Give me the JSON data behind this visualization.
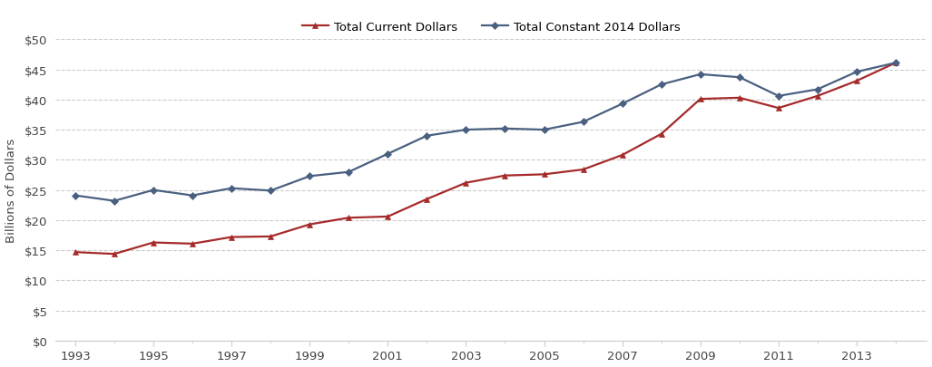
{
  "years": [
    1993,
    1994,
    1995,
    1996,
    1997,
    1998,
    1999,
    2000,
    2001,
    2002,
    2003,
    2004,
    2005,
    2006,
    2007,
    2008,
    2009,
    2010,
    2011,
    2012,
    2013,
    2014
  ],
  "current_dollars": [
    14.7,
    14.4,
    16.3,
    16.1,
    17.2,
    17.3,
    19.3,
    20.4,
    20.6,
    23.5,
    26.2,
    27.4,
    27.6,
    28.4,
    30.8,
    34.3,
    40.1,
    40.3,
    38.6,
    40.6,
    43.1,
    46.1
  ],
  "constant_dollars": [
    24.1,
    23.2,
    25.0,
    24.1,
    25.3,
    24.9,
    27.3,
    28.0,
    31.0,
    34.0,
    35.0,
    35.2,
    35.0,
    36.3,
    39.3,
    42.5,
    44.2,
    43.7,
    40.6,
    41.7,
    44.6,
    46.1
  ],
  "current_color": "#A52A2A",
  "constant_color": "#4A6080",
  "current_label": "Total Current Dollars",
  "constant_label": "Total Constant 2014 Dollars",
  "ylabel": "Billions of Dollars",
  "ylim": [
    0,
    50
  ],
  "yticks": [
    0,
    5,
    10,
    15,
    20,
    25,
    30,
    35,
    40,
    45,
    50
  ],
  "background_color": "#FFFFFF",
  "grid_color": "#CCCCCC",
  "spine_color": "#CCCCCC",
  "tick_label_color": "#444444",
  "ylabel_color": "#444444",
  "legend_fontsize": 9.5,
  "axis_fontsize": 9.5
}
